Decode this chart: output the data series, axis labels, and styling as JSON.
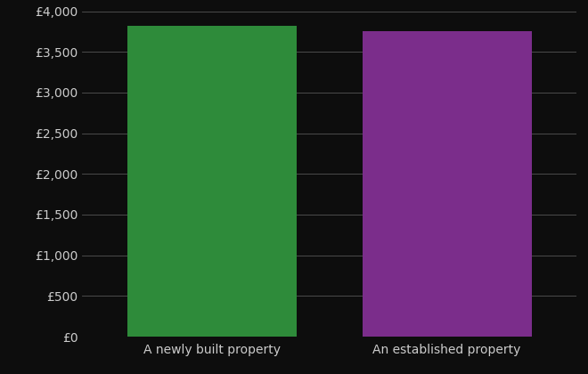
{
  "categories": [
    "A newly built property",
    "An established property"
  ],
  "values": [
    3825,
    3760
  ],
  "bar_colors": [
    "#2e8b3a",
    "#7b2d8b"
  ],
  "background_color": "#0d0d0d",
  "text_color": "#cccccc",
  "grid_color": "#555555",
  "ylim": [
    0,
    4000
  ],
  "yticks": [
    0,
    500,
    1000,
    1500,
    2000,
    2500,
    3000,
    3500,
    4000
  ],
  "ylabel_prefix": "£",
  "bar_width": 0.72,
  "figsize": [
    6.6,
    4.2
  ],
  "dpi": 100
}
